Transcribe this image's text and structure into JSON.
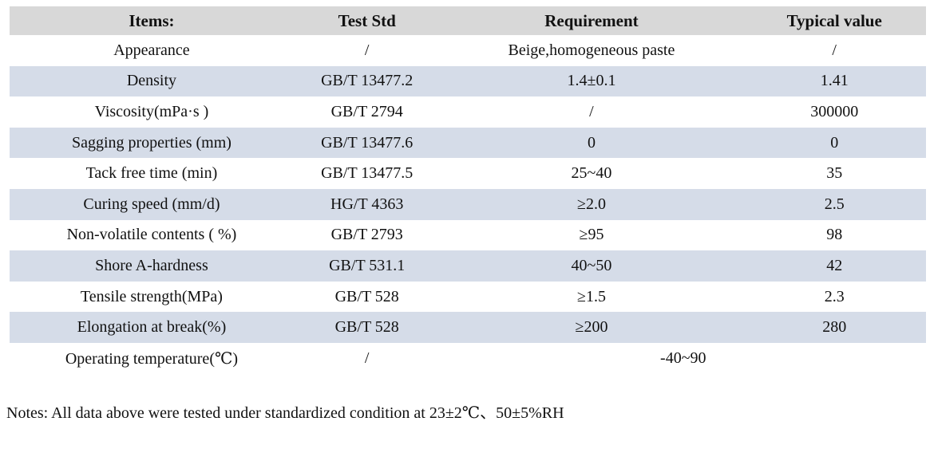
{
  "table": {
    "headers": [
      "Items:",
      "Test Std",
      "Requirement",
      "Typical value"
    ],
    "rows": [
      {
        "item": "Appearance",
        "std": "/",
        "req": "Beige,homogeneous paste",
        "typ": "/",
        "shaded": false,
        "merged": false
      },
      {
        "item": "Density",
        "std": "GB/T 13477.2",
        "req": "1.4±0.1",
        "typ": "1.41",
        "shaded": true,
        "merged": false
      },
      {
        "item": "Viscosity(mPa·s )",
        "std": "GB/T 2794",
        "req": "/",
        "typ": "300000",
        "shaded": false,
        "merged": false
      },
      {
        "item": "Sagging properties (mm)",
        "std": "GB/T 13477.6",
        "req": "0",
        "typ": "0",
        "shaded": true,
        "merged": false
      },
      {
        "item": "Tack free time (min)",
        "std": "GB/T 13477.5",
        "req": "25~40",
        "typ": "35",
        "shaded": false,
        "merged": false
      },
      {
        "item": "Curing speed (mm/d)",
        "std": "HG/T 4363",
        "req": "≥2.0",
        "typ": "2.5",
        "shaded": true,
        "merged": false
      },
      {
        "item": "Non-volatile contents ( %)",
        "std": "GB/T 2793",
        "req": "≥95",
        "typ": "98",
        "shaded": false,
        "merged": false
      },
      {
        "item": "Shore A-hardness",
        "std": "GB/T 531.1",
        "req": "40~50",
        "typ": "42",
        "shaded": true,
        "merged": false
      },
      {
        "item": "Tensile strength(MPa)",
        "std": "GB/T 528",
        "req": "≥1.5",
        "typ": "2.3",
        "shaded": false,
        "merged": false
      },
      {
        "item": "Elongation at break(%)",
        "std": "GB/T 528",
        "req": "≥200",
        "typ": "280",
        "shaded": true,
        "merged": false
      },
      {
        "item": "Operating temperature(℃)",
        "std": "/",
        "req": "-40~90",
        "typ": "",
        "shaded": false,
        "merged": true
      }
    ]
  },
  "notes": "Notes: All data above were tested under standardized condition at 23±2℃、50±5%RH",
  "colors": {
    "header_bg": "#d8d8d8",
    "shaded_row_bg": "#d5dce8",
    "text": "#111111",
    "page_bg": "#ffffff"
  }
}
